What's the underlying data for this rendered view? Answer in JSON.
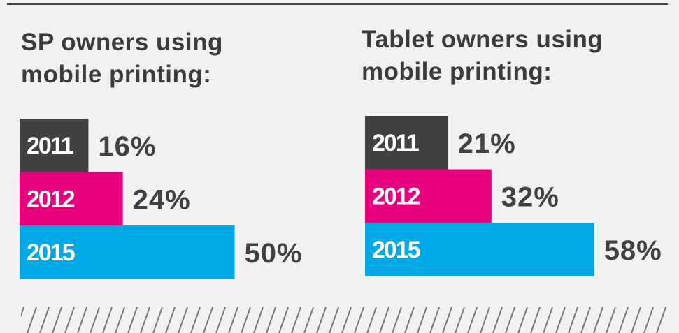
{
  "chart_data": [
    {
      "type": "bar",
      "title": "SP owners using mobile printing:",
      "categories": [
        "2011",
        "2012",
        "2015"
      ],
      "values": [
        16,
        24,
        50
      ],
      "value_labels": [
        "16%",
        "24%",
        "50%"
      ],
      "colors": [
        "#414042",
        "#e6007e",
        "#00a9e6"
      ]
    },
    {
      "type": "bar",
      "title": "Tablet owners using mobile printing:",
      "categories": [
        "2011",
        "2012",
        "2015"
      ],
      "values": [
        21,
        32,
        58
      ],
      "value_labels": [
        "21%",
        "32%",
        "58%"
      ],
      "colors": [
        "#414042",
        "#e6007e",
        "#00a9e6"
      ]
    }
  ]
}
